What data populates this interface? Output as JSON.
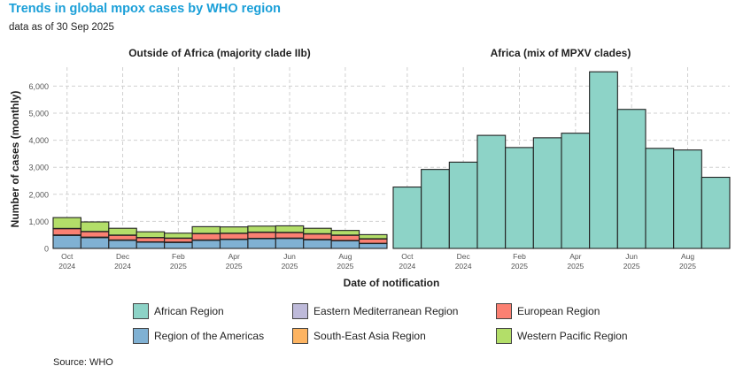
{
  "title": "Trends in global mpox cases by WHO region",
  "subtitle": "data as of 30 Sep 2025",
  "source": "Source: WHO",
  "colors": {
    "african": "#8dd3c7",
    "eastern_mediterranean": "#bebada",
    "european": "#fb8072",
    "americas": "#80b1d3",
    "south_east_asia": "#fdb462",
    "western_pacific": "#b3de69"
  },
  "legend": [
    {
      "key": "african",
      "label": "African Region"
    },
    {
      "key": "eastern_mediterranean",
      "label": "Eastern Mediterranean Region"
    },
    {
      "key": "european",
      "label": "European Region"
    },
    {
      "key": "americas",
      "label": "Region of the Americas"
    },
    {
      "key": "south_east_asia",
      "label": "South-East Asia Region"
    },
    {
      "key": "western_pacific",
      "label": "Western Pacific Region"
    }
  ],
  "chart_data": [
    {
      "type": "bar",
      "stacked": true,
      "title": "Outside of Africa (majority clade IIb)",
      "xlabel": "Date of notification",
      "ylabel": "Number of cases (monthly)",
      "ylim": [
        0,
        6700
      ],
      "yticks": [
        0,
        1000,
        2000,
        3000,
        4000,
        5000,
        6000
      ],
      "ytick_labels": [
        "0",
        "1,000",
        "2,000",
        "3,000",
        "4,000",
        "5,000",
        "6,000"
      ],
      "grid": true,
      "categories": [
        "Oct 2024",
        "Nov 2024",
        "Dec 2024",
        "Jan 2025",
        "Feb 2025",
        "Mar 2025",
        "Apr 2025",
        "May 2025",
        "Jun 2025",
        "Jul 2025",
        "Aug 2025",
        "Sep 2025"
      ],
      "xtick_labels": [
        [
          "Oct",
          "2024"
        ],
        [
          "Dec",
          "2024"
        ],
        [
          "Feb",
          "2025"
        ],
        [
          "Apr",
          "2025"
        ],
        [
          "Jun",
          "2025"
        ],
        [
          "Aug",
          "2025"
        ]
      ],
      "xtick_positions": [
        0,
        2,
        4,
        6,
        8,
        10
      ],
      "series": [
        {
          "name": "Region of the Americas",
          "key": "americas",
          "values": [
            480,
            400,
            300,
            230,
            220,
            300,
            330,
            360,
            370,
            320,
            280,
            180
          ]
        },
        {
          "name": "South-East Asia Region",
          "key": "south_east_asia",
          "values": [
            20,
            20,
            15,
            15,
            15,
            15,
            15,
            15,
            15,
            15,
            15,
            10
          ]
        },
        {
          "name": "European Region",
          "key": "european",
          "values": [
            230,
            200,
            170,
            150,
            140,
            230,
            210,
            220,
            200,
            200,
            190,
            160
          ]
        },
        {
          "name": "Eastern Mediterranean Region",
          "key": "eastern_mediterranean",
          "values": [
            10,
            10,
            10,
            10,
            10,
            10,
            10,
            10,
            10,
            10,
            10,
            10
          ]
        },
        {
          "name": "Western Pacific Region",
          "key": "western_pacific",
          "values": [
            400,
            350,
            250,
            210,
            180,
            250,
            230,
            220,
            240,
            200,
            170,
            150
          ]
        }
      ]
    },
    {
      "type": "bar",
      "title": "Africa (mix of MPXV clades)",
      "xlabel": "Date of notification",
      "ylim": [
        0,
        6700
      ],
      "grid": true,
      "categories": [
        "Oct 2024",
        "Nov 2024",
        "Dec 2024",
        "Jan 2025",
        "Feb 2025",
        "Mar 2025",
        "Apr 2025",
        "May 2025",
        "Jun 2025",
        "Jul 2025",
        "Aug 2025",
        "Sep 2025"
      ],
      "xtick_labels": [
        [
          "Oct",
          "2024"
        ],
        [
          "Dec",
          "2024"
        ],
        [
          "Feb",
          "2025"
        ],
        [
          "Apr",
          "2025"
        ],
        [
          "Jun",
          "2025"
        ],
        [
          "Aug",
          "2025"
        ]
      ],
      "xtick_positions": [
        0,
        2,
        4,
        6,
        8,
        10
      ],
      "series": [
        {
          "name": "African Region",
          "key": "african",
          "values": [
            2270,
            2920,
            3190,
            4180,
            3730,
            4090,
            4260,
            6530,
            5140,
            3700,
            3640,
            2630
          ]
        }
      ]
    }
  ]
}
